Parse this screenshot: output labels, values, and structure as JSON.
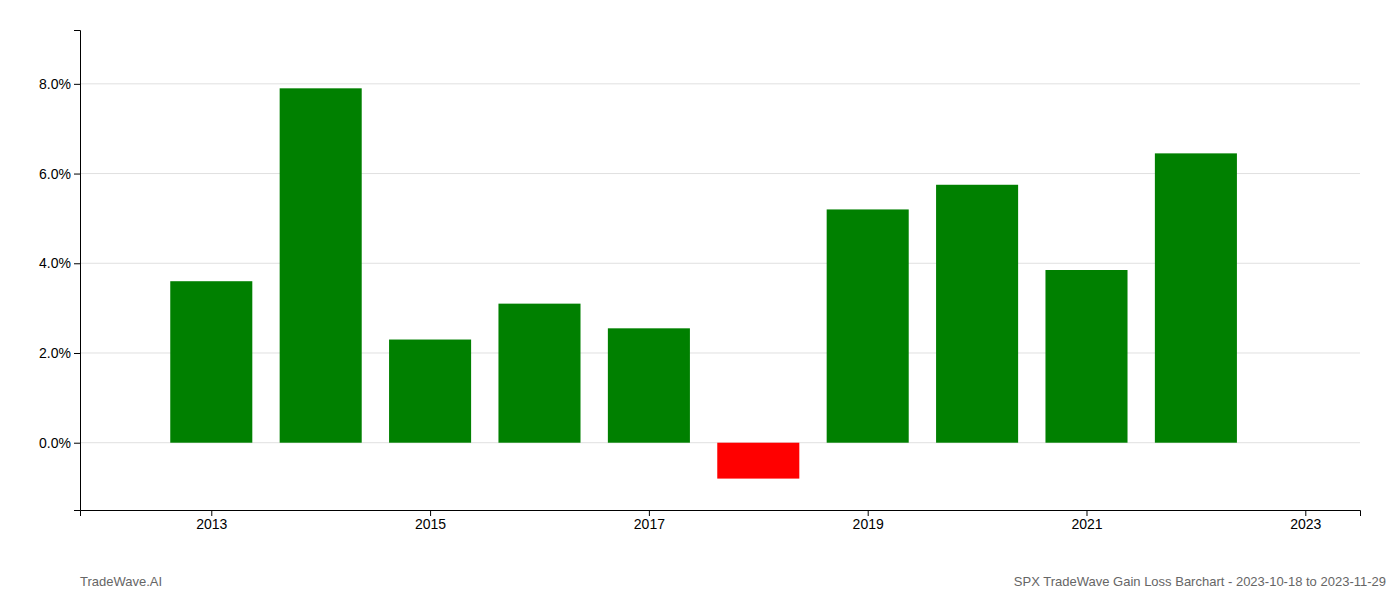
{
  "chart_data": {
    "type": "bar",
    "x": [
      2013,
      2014,
      2015,
      2016,
      2017,
      2018,
      2019,
      2020,
      2021,
      2022
    ],
    "values": [
      0.036,
      0.079,
      0.023,
      0.031,
      0.0255,
      -0.008,
      0.052,
      0.0575,
      0.0385,
      0.0645
    ],
    "colors": [
      "#008000",
      "#008000",
      "#008000",
      "#008000",
      "#008000",
      "#ff0000",
      "#008000",
      "#008000",
      "#008000",
      "#008000"
    ],
    "xlim": [
      2011.8,
      2023.5
    ],
    "xticks": [
      2013,
      2015,
      2017,
      2019,
      2021,
      2023
    ],
    "ylim": [
      -0.015,
      0.092
    ],
    "yticks": [
      {
        "value": 0.0,
        "label": "0.0%"
      },
      {
        "value": 0.02,
        "label": "2.0%"
      },
      {
        "value": 0.04,
        "label": "4.0%"
      },
      {
        "value": 0.06,
        "label": "6.0%"
      },
      {
        "value": 0.08,
        "label": "8.0%"
      }
    ],
    "grid": true,
    "annotations": [
      "TradeWave.AI",
      "SPX TradeWave Gain Loss Barchart - 2023-10-18 to 2023-11-29"
    ]
  }
}
